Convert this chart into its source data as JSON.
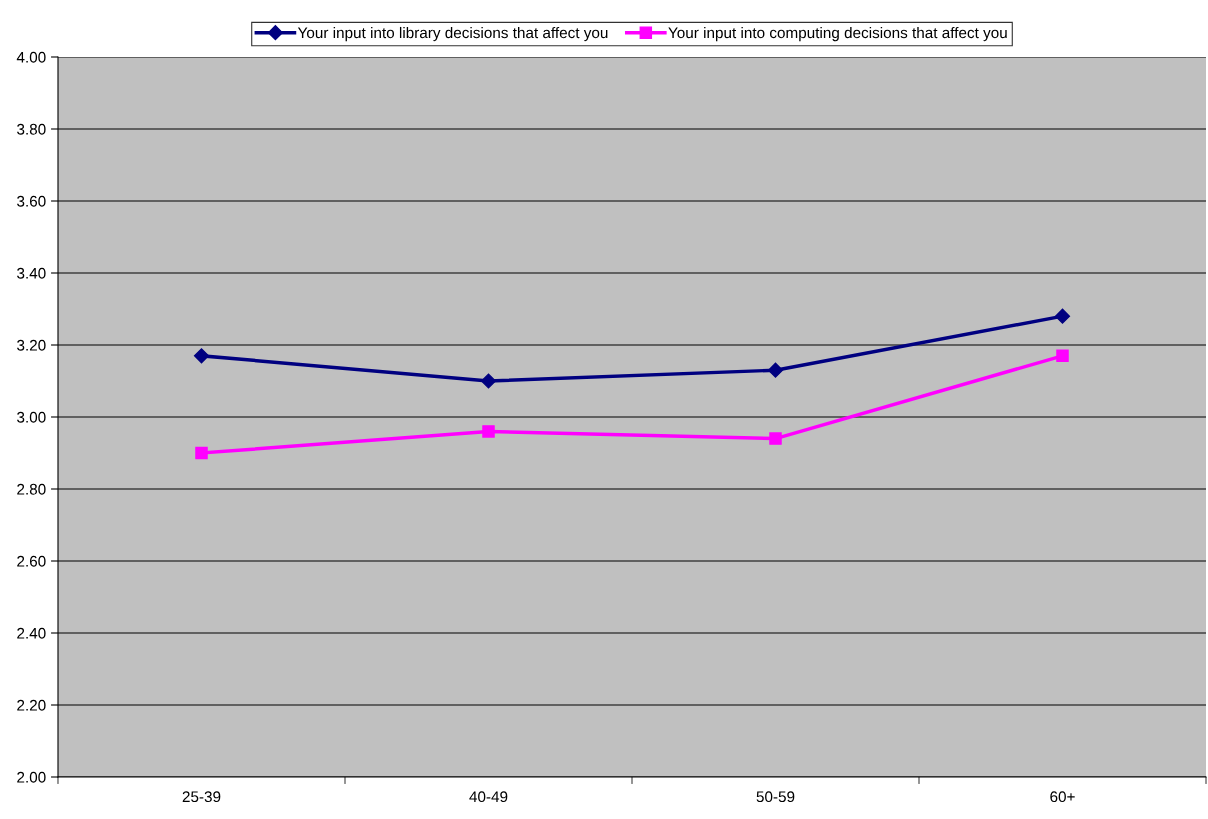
{
  "chart_data": {
    "type": "line",
    "categories": [
      "25-39",
      "40-49",
      "50-59",
      "60+"
    ],
    "series": [
      {
        "name": "Your input into library decisions that affect you",
        "color": "#000080",
        "marker": "diamond",
        "values": [
          3.17,
          3.1,
          3.13,
          3.28
        ]
      },
      {
        "name": "Your input into computing decisions that affect you",
        "color": "#ff00ff",
        "marker": "square",
        "values": [
          2.9,
          2.96,
          2.94,
          3.17
        ]
      }
    ],
    "ylim": [
      2.0,
      4.0
    ],
    "yticks": [
      {
        "value": 2.0,
        "label": "2.00"
      },
      {
        "value": 2.2,
        "label": "2.20"
      },
      {
        "value": 2.4,
        "label": "2.40"
      },
      {
        "value": 2.6,
        "label": "2.60"
      },
      {
        "value": 2.8,
        "label": "2.80"
      },
      {
        "value": 3.0,
        "label": "3.00"
      },
      {
        "value": 3.2,
        "label": "3.20"
      },
      {
        "value": 3.4,
        "label": "3.40"
      },
      {
        "value": 3.6,
        "label": "3.60"
      },
      {
        "value": 3.8,
        "label": "3.80"
      },
      {
        "value": 4.0,
        "label": "4.00"
      }
    ],
    "grid": "y",
    "legend": "top",
    "line_style": "solid"
  }
}
